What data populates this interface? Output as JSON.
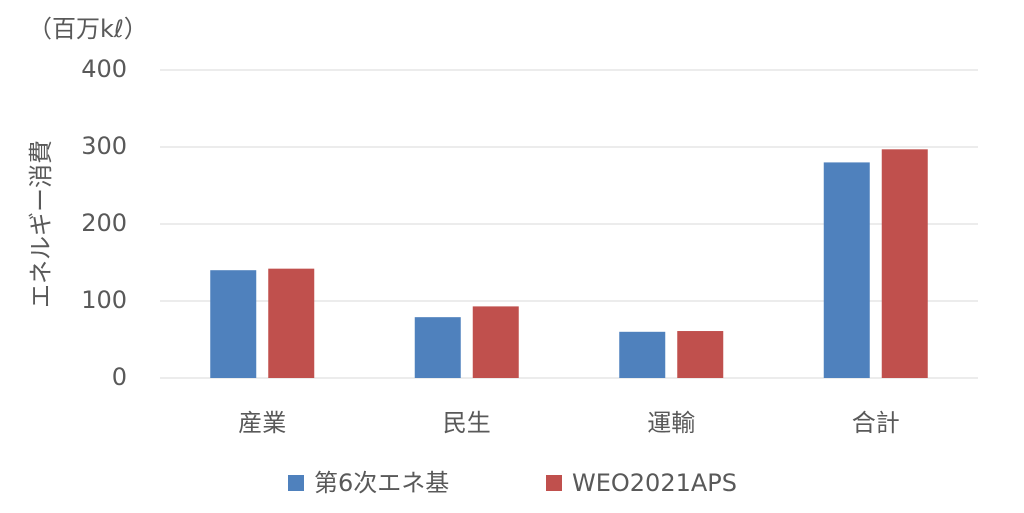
{
  "chart_data": {
    "type": "bar",
    "unit_label": "（百万kℓ）",
    "y_label": "エネルギー消費",
    "categories": [
      "産業",
      "民生",
      "運輸",
      "合計"
    ],
    "series": [
      {
        "name": "第6次エネ基",
        "color": "#4f81bd",
        "values": [
          140,
          79,
          60,
          280
        ]
      },
      {
        "name": "WEO2021APS",
        "color": "#c0504d",
        "values": [
          142,
          93,
          61,
          297
        ]
      }
    ],
    "ylim": [
      0,
      400
    ],
    "yticks": [
      0,
      100,
      200,
      300,
      400
    ],
    "grid": true,
    "legend": "bottom"
  }
}
